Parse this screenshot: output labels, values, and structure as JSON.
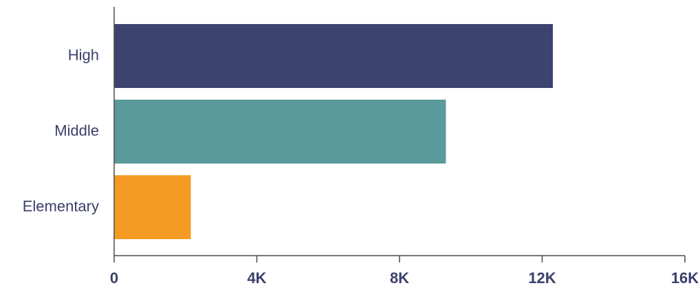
{
  "chart_data": {
    "type": "bar",
    "orientation": "horizontal",
    "categories": [
      "High",
      "Middle",
      "Elementary"
    ],
    "values": [
      12300,
      9300,
      2150
    ],
    "colors": [
      "#3c436e",
      "#5a9a9c",
      "#f59a23"
    ],
    "xlim": [
      0,
      16000
    ],
    "xticks": [
      0,
      4000,
      8000,
      12000,
      16000
    ],
    "xtick_labels": [
      "0",
      "4K",
      "8K",
      "12K",
      "16K"
    ],
    "title": "",
    "xlabel": "",
    "ylabel": "",
    "grid": false,
    "legend": "none"
  }
}
